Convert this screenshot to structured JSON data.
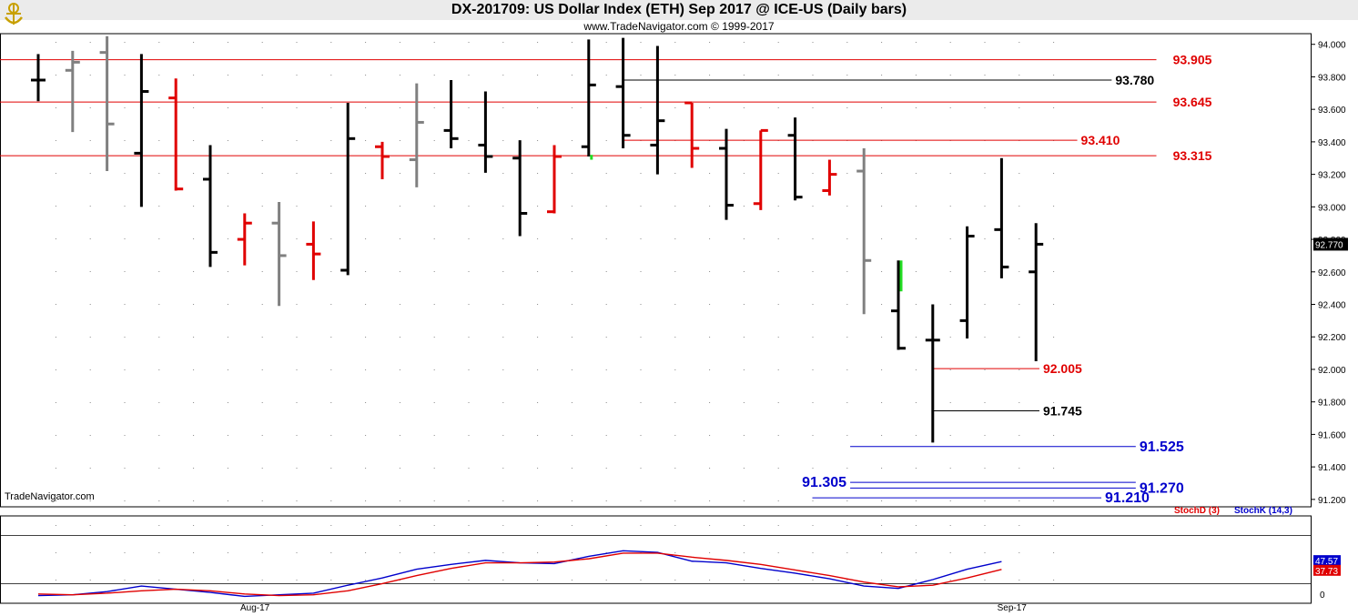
{
  "header": {
    "title": "DX-201709:  US Dollar Index (ETH) Sep 2017 @ ICE-US  (Daily bars)",
    "subtitle": "www.TradeNavigator.com © 1999-2017",
    "watermark": "TradeNavigator.com",
    "logo_icon": "ship-wheel-anchor-icon"
  },
  "chart_data": [
    {
      "type": "ohlc",
      "title": "DX-201709:  US Dollar Index (ETH) Sep 2017 @ ICE-US  (Daily bars)",
      "ylim": [
        91.16,
        94.06
      ],
      "yticks": [
        "94.000",
        "93.800",
        "93.600",
        "93.400",
        "93.200",
        "93.000",
        "92.800",
        "92.600",
        "92.400",
        "92.200",
        "92.000",
        "91.800",
        "91.600",
        "91.400",
        "91.200"
      ],
      "xticks": [
        {
          "label": "Aug-17",
          "bar": 6
        },
        {
          "label": "Sep-17",
          "bar": 28
        }
      ],
      "last_price": "92.770",
      "colors": {
        "black": "#000000",
        "red": "#e00000",
        "gray": "#808080",
        "green": "#22dd22",
        "blue": "#0000cc"
      },
      "bars": [
        {
          "o": 93.78,
          "h": 93.94,
          "l": 93.65,
          "c": 93.78,
          "color": "black"
        },
        {
          "o": 93.84,
          "h": 93.96,
          "l": 93.46,
          "c": 93.89,
          "color": "gray"
        },
        {
          "o": 93.95,
          "h": 94.05,
          "l": 93.22,
          "c": 93.51,
          "color": "gray"
        },
        {
          "o": 93.33,
          "h": 93.94,
          "l": 93.0,
          "c": 93.71,
          "color": "black"
        },
        {
          "o": 93.67,
          "h": 93.79,
          "l": 93.1,
          "c": 93.11,
          "color": "red"
        },
        {
          "o": 93.17,
          "h": 93.38,
          "l": 92.63,
          "c": 92.72,
          "color": "black"
        },
        {
          "o": 92.8,
          "h": 92.96,
          "l": 92.64,
          "c": 92.9,
          "color": "red"
        },
        {
          "o": 92.9,
          "h": 93.03,
          "l": 92.39,
          "c": 92.7,
          "color": "gray"
        },
        {
          "o": 92.77,
          "h": 92.91,
          "l": 92.55,
          "c": 92.71,
          "color": "red"
        },
        {
          "o": 92.61,
          "h": 93.64,
          "l": 92.58,
          "c": 93.42,
          "color": "black"
        },
        {
          "o": 93.37,
          "h": 93.4,
          "l": 93.17,
          "c": 93.31,
          "color": "red"
        },
        {
          "o": 93.29,
          "h": 93.76,
          "l": 93.12,
          "c": 93.52,
          "color": "gray"
        },
        {
          "o": 93.47,
          "h": 93.78,
          "l": 93.36,
          "c": 93.42,
          "color": "black"
        },
        {
          "o": 93.38,
          "h": 93.71,
          "l": 93.21,
          "c": 93.31,
          "color": "black"
        },
        {
          "o": 93.3,
          "h": 93.41,
          "l": 92.82,
          "c": 92.96,
          "color": "black"
        },
        {
          "o": 92.97,
          "h": 93.38,
          "l": 92.96,
          "c": 93.31,
          "color": "red"
        },
        {
          "o": 93.37,
          "h": 94.03,
          "l": 93.31,
          "c": 93.75,
          "color": "black"
        },
        {
          "o": 93.74,
          "h": 94.04,
          "l": 93.36,
          "c": 93.44,
          "color": "black"
        },
        {
          "o": 93.38,
          "h": 93.99,
          "l": 93.2,
          "c": 93.53,
          "color": "black"
        },
        {
          "o": 93.64,
          "h": 93.64,
          "l": 93.24,
          "c": 93.36,
          "color": "red"
        },
        {
          "o": 93.36,
          "h": 93.48,
          "l": 92.92,
          "c": 93.01,
          "color": "black"
        },
        {
          "o": 93.02,
          "h": 93.47,
          "l": 92.98,
          "c": 93.47,
          "color": "red"
        },
        {
          "o": 93.44,
          "h": 93.55,
          "l": 93.04,
          "c": 93.06,
          "color": "black"
        },
        {
          "o": 93.1,
          "h": 93.29,
          "l": 93.07,
          "c": 93.2,
          "color": "red"
        },
        {
          "o": 93.22,
          "h": 93.36,
          "l": 92.34,
          "c": 92.67,
          "color": "gray"
        },
        {
          "o": 92.36,
          "h": 92.67,
          "l": 92.12,
          "c": 92.13,
          "color": "black"
        },
        {
          "o": 92.18,
          "h": 92.4,
          "l": 91.55,
          "c": 92.18,
          "color": "black"
        },
        {
          "o": 92.3,
          "h": 92.88,
          "l": 92.19,
          "c": 92.82,
          "color": "black"
        },
        {
          "o": 92.86,
          "h": 93.3,
          "l": 92.56,
          "c": 92.63,
          "color": "black"
        },
        {
          "o": 92.6,
          "h": 92.9,
          "l": 92.05,
          "c": 92.77,
          "color": "black"
        }
      ],
      "levels": [
        {
          "value": 93.905,
          "label": "93.905",
          "color": "red",
          "from_bar": -1,
          "to_bar": 32.5,
          "label_at": "right"
        },
        {
          "value": 93.78,
          "label": "93.780",
          "color": "black",
          "from_bar": 17,
          "to_bar": 31.2,
          "label_at": "end"
        },
        {
          "value": 93.645,
          "label": "93.645",
          "color": "red",
          "from_bar": -1,
          "to_bar": 32.5,
          "label_at": "right"
        },
        {
          "value": 93.41,
          "label": "93.410",
          "color": "red",
          "from_bar": 17,
          "to_bar": 30.2,
          "label_at": "end"
        },
        {
          "value": 93.315,
          "label": "93.315",
          "color": "red",
          "from_bar": -1,
          "to_bar": 32.5,
          "label_at": "right"
        },
        {
          "value": 92.005,
          "label": "92.005",
          "color": "red",
          "from_bar": 26,
          "to_bar": 29.1,
          "label_at": "end"
        },
        {
          "value": 91.745,
          "label": "91.745",
          "color": "black",
          "from_bar": 26,
          "to_bar": 29.1,
          "label_at": "end"
        },
        {
          "value": 91.525,
          "label": "91.525",
          "color": "blue",
          "from_bar": 23.6,
          "to_bar": 31.9,
          "label_at": "end"
        },
        {
          "value": 91.305,
          "label": "91.305",
          "color": "blue",
          "from_bar": 23.6,
          "to_bar": 31.9,
          "label_at": "start"
        },
        {
          "value": 91.27,
          "label": "91.270",
          "color": "blue",
          "from_bar": 23.6,
          "to_bar": 31.9,
          "label_at": "end"
        },
        {
          "value": 91.21,
          "label": "91.210",
          "color": "blue",
          "from_bar": 22.5,
          "to_bar": 30.9,
          "label_at": "end"
        }
      ]
    },
    {
      "type": "line",
      "legend": [
        "StochD (3)",
        "StochK (14,3)"
      ],
      "ylim": [
        0,
        100
      ],
      "yticks": [
        "0"
      ],
      "reference_lines": [
        20,
        80
      ],
      "last_values": {
        "k": "47.57",
        "d": "37.73"
      },
      "series": [
        {
          "name": "StochK (14,3)",
          "color": "#0000cc",
          "values": [
            5,
            6,
            10,
            17,
            13,
            9,
            4,
            6,
            8,
            18,
            27,
            38,
            44,
            49,
            46,
            45,
            54,
            61,
            59,
            48,
            46,
            39,
            33,
            26,
            17,
            14,
            25,
            38,
            47.57
          ]
        },
        {
          "name": "StochD (3)",
          "color": "#e00000",
          "values": [
            7,
            6,
            8,
            11,
            13,
            11,
            7,
            5,
            6,
            11,
            20,
            30,
            39,
            46,
            46,
            47,
            51,
            58,
            58,
            53,
            49,
            44,
            37,
            30,
            22,
            16,
            18,
            27,
            37.73
          ]
        }
      ]
    }
  ]
}
